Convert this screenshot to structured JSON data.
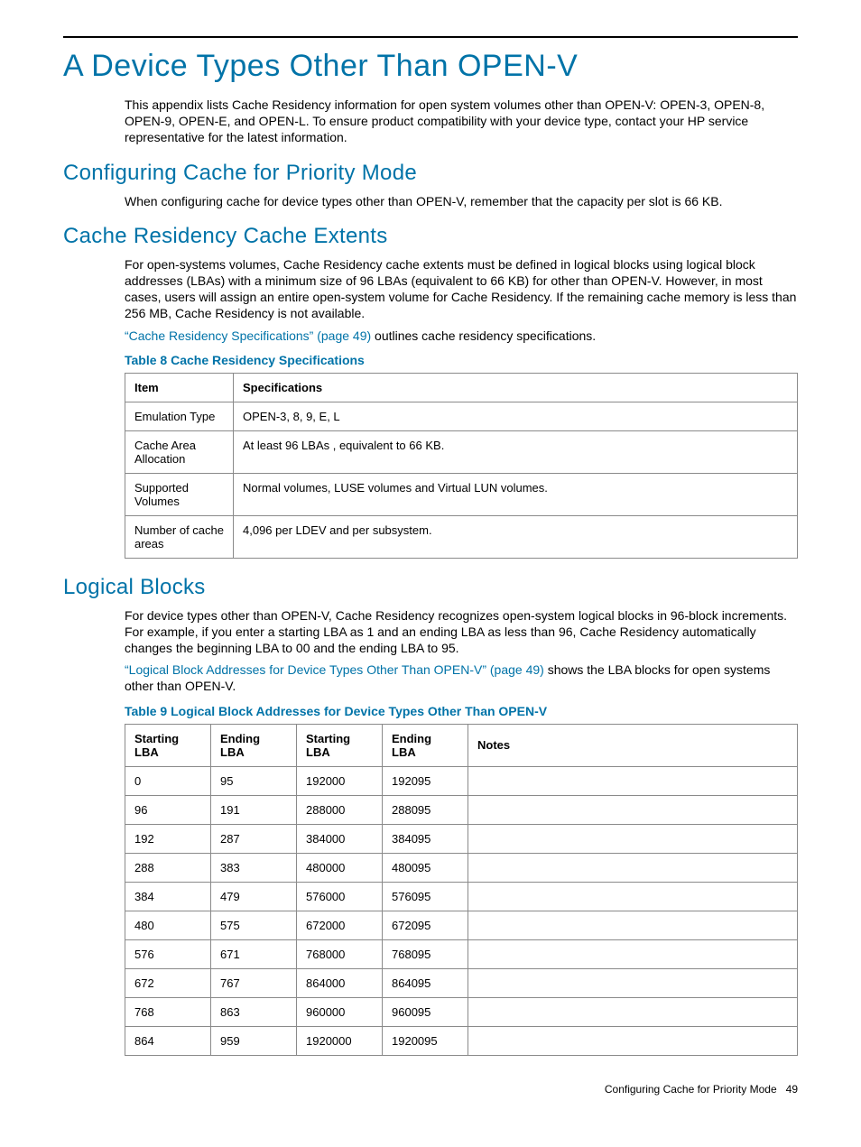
{
  "colors": {
    "accent": "#0073a8",
    "text": "#000000",
    "border": "#8a8a8a",
    "background": "#ffffff"
  },
  "typography": {
    "h1_size": 34,
    "h2_size": 24,
    "body_size": 14,
    "table_size": 13
  },
  "page": {
    "title": "A Device Types Other Than OPEN-V",
    "intro": "This appendix lists Cache Residency information for open system volumes other than OPEN-V: OPEN-3, OPEN-8, OPEN-9, OPEN-E, and OPEN-L. To ensure product compatibility with your device type, contact your HP service representative for the latest information."
  },
  "section1": {
    "heading": "Configuring Cache for Priority Mode",
    "body": "When configuring cache for device types other than OPEN-V, remember that the capacity per slot is 66 KB."
  },
  "section2": {
    "heading": "Cache Residency Cache Extents",
    "body": "For open-systems volumes, Cache Residency cache extents must be defined in logical blocks using logical block addresses (LBAs) with a minimum size of 96 LBAs (equivalent to 66 KB) for other than OPEN-V. However, in most cases, users will assign an entire open-system volume for Cache Residency. If the remaining cache memory is less than 256 MB, Cache Residency is not available.",
    "link": "“Cache Residency Specifications” (page 49)",
    "link_tail": " outlines cache residency specifications."
  },
  "table8": {
    "caption": "Table 8 Cache Residency Specifications",
    "columns": [
      "Item",
      "Specifications"
    ],
    "rows": [
      [
        "Emulation Type",
        "OPEN-3, 8, 9, E, L"
      ],
      [
        "Cache Area Allocation",
        "At least 96 LBAs , equivalent to 66 KB."
      ],
      [
        "Supported Volumes",
        "Normal volumes, LUSE volumes and Virtual LUN volumes."
      ],
      [
        "Number of cache areas",
        "4,096 per LDEV and per subsystem."
      ]
    ]
  },
  "section3": {
    "heading": "Logical Blocks",
    "body": "For device types other than OPEN-V, Cache Residency recognizes open-system logical blocks in 96-block increments. For example, if you enter a starting LBA as 1 and an ending LBA as less than 96, Cache Residency automatically changes the beginning LBA to 00 and the ending LBA to 95.",
    "link": "“Logical Block Addresses for Device Types Other Than OPEN-V” (page 49)",
    "link_tail": " shows the LBA blocks for open systems other than OPEN-V."
  },
  "table9": {
    "caption": "Table 9 Logical Block Addresses for Device Types Other Than OPEN-V",
    "columns": [
      "Starting LBA",
      "Ending LBA",
      "Starting LBA",
      "Ending LBA",
      "Notes"
    ],
    "rows": [
      [
        "0",
        "95",
        "192000",
        "192095",
        ""
      ],
      [
        "96",
        "191",
        "288000",
        "288095",
        ""
      ],
      [
        "192",
        "287",
        "384000",
        "384095",
        ""
      ],
      [
        "288",
        "383",
        "480000",
        "480095",
        ""
      ],
      [
        "384",
        "479",
        "576000",
        "576095",
        ""
      ],
      [
        "480",
        "575",
        "672000",
        "672095",
        ""
      ],
      [
        "576",
        "671",
        "768000",
        "768095",
        ""
      ],
      [
        "672",
        "767",
        "864000",
        "864095",
        ""
      ],
      [
        "768",
        "863",
        "960000",
        "960095",
        ""
      ],
      [
        "864",
        "959",
        "1920000",
        "1920095",
        ""
      ]
    ]
  },
  "footer": {
    "text": "Configuring Cache for Priority Mode",
    "page": "49"
  }
}
